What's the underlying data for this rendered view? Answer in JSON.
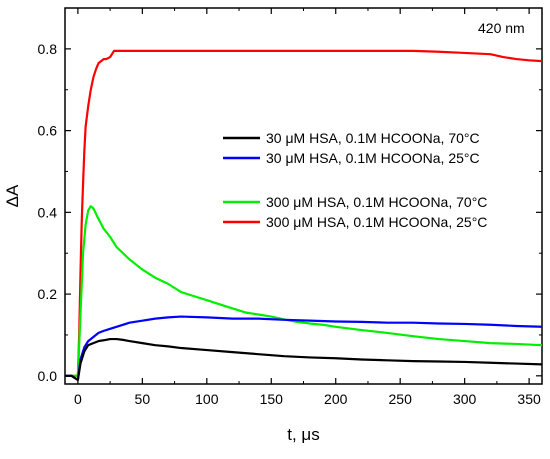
{
  "chart_data": {
    "type": "line",
    "title": "",
    "annotation": "420 nm",
    "xlabel": "t, μs",
    "ylabel": "ΔA",
    "xlim": [
      -10,
      360
    ],
    "ylim": [
      -0.02,
      0.9
    ],
    "xticks": [
      0,
      50,
      100,
      150,
      200,
      250,
      300,
      350
    ],
    "yticks": [
      0.0,
      0.2,
      0.4,
      0.6,
      0.8
    ],
    "ytick_labels": [
      "0.0",
      "0.2",
      "0.4",
      "0.6",
      "0.8"
    ],
    "grid": false,
    "legend_position": "right",
    "series": [
      {
        "name": "30 μM HSA, 0.1M HCOONa, 70°C",
        "color": "#000000",
        "x": [
          -10,
          -5,
          0,
          2,
          5,
          8,
          12,
          16,
          20,
          25,
          30,
          35,
          40,
          50,
          60,
          70,
          80,
          100,
          120,
          140,
          160,
          180,
          200,
          220,
          240,
          260,
          280,
          300,
          320,
          340,
          360
        ],
        "y": [
          0.0,
          0.0,
          -0.01,
          0.03,
          0.06,
          0.075,
          0.08,
          0.085,
          0.087,
          0.09,
          0.09,
          0.088,
          0.085,
          0.08,
          0.075,
          0.072,
          0.068,
          0.063,
          0.058,
          0.053,
          0.048,
          0.045,
          0.043,
          0.04,
          0.038,
          0.036,
          0.035,
          0.034,
          0.032,
          0.03,
          0.028
        ]
      },
      {
        "name": "30 μM HSA, 0.1M HCOONa, 25°C",
        "color": "#0000ff",
        "x": [
          -10,
          -5,
          0,
          2,
          5,
          8,
          12,
          16,
          20,
          25,
          30,
          40,
          50,
          60,
          70,
          80,
          100,
          120,
          140,
          160,
          180,
          200,
          220,
          240,
          260,
          280,
          300,
          320,
          340,
          360
        ],
        "y": [
          0.0,
          0.0,
          -0.01,
          0.04,
          0.07,
          0.085,
          0.095,
          0.105,
          0.11,
          0.115,
          0.12,
          0.13,
          0.135,
          0.14,
          0.143,
          0.145,
          0.143,
          0.14,
          0.14,
          0.137,
          0.135,
          0.133,
          0.132,
          0.13,
          0.13,
          0.128,
          0.127,
          0.125,
          0.122,
          0.12
        ]
      },
      {
        "name": "300 μM HSA, 0.1M HCOONa, 70°C",
        "color": "#00ee00",
        "x": [
          -10,
          -5,
          0,
          2,
          4,
          6,
          8,
          10,
          12,
          15,
          20,
          25,
          30,
          40,
          50,
          60,
          70,
          80,
          90,
          100,
          110,
          120,
          130,
          140,
          150,
          160,
          170,
          180,
          190,
          200,
          220,
          240,
          260,
          280,
          300,
          320,
          340,
          360
        ],
        "y": [
          0.0,
          0.0,
          0.0,
          0.15,
          0.3,
          0.37,
          0.405,
          0.415,
          0.41,
          0.39,
          0.36,
          0.34,
          0.315,
          0.285,
          0.26,
          0.24,
          0.225,
          0.205,
          0.195,
          0.185,
          0.175,
          0.165,
          0.155,
          0.15,
          0.145,
          0.138,
          0.132,
          0.128,
          0.125,
          0.12,
          0.112,
          0.105,
          0.097,
          0.09,
          0.085,
          0.08,
          0.078,
          0.075
        ]
      },
      {
        "name": "300 μM HSA, 0.1M HCOONa, 25°C",
        "color": "#ff0000",
        "x": [
          -10,
          -5,
          0,
          1,
          2,
          3,
          4,
          5,
          6,
          8,
          10,
          12,
          14,
          16,
          18,
          20,
          22,
          25,
          28,
          30,
          35,
          40,
          50,
          60,
          80,
          100,
          120,
          140,
          160,
          180,
          200,
          220,
          240,
          260,
          280,
          300,
          320,
          330,
          340,
          350,
          360
        ],
        "y": [
          0.0,
          0.0,
          0.0,
          0.1,
          0.25,
          0.38,
          0.47,
          0.55,
          0.61,
          0.66,
          0.7,
          0.73,
          0.75,
          0.765,
          0.77,
          0.775,
          0.775,
          0.78,
          0.795,
          0.795,
          0.795,
          0.795,
          0.795,
          0.795,
          0.795,
          0.795,
          0.795,
          0.795,
          0.795,
          0.795,
          0.795,
          0.795,
          0.795,
          0.795,
          0.793,
          0.79,
          0.787,
          0.78,
          0.775,
          0.772,
          0.77
        ]
      }
    ]
  }
}
